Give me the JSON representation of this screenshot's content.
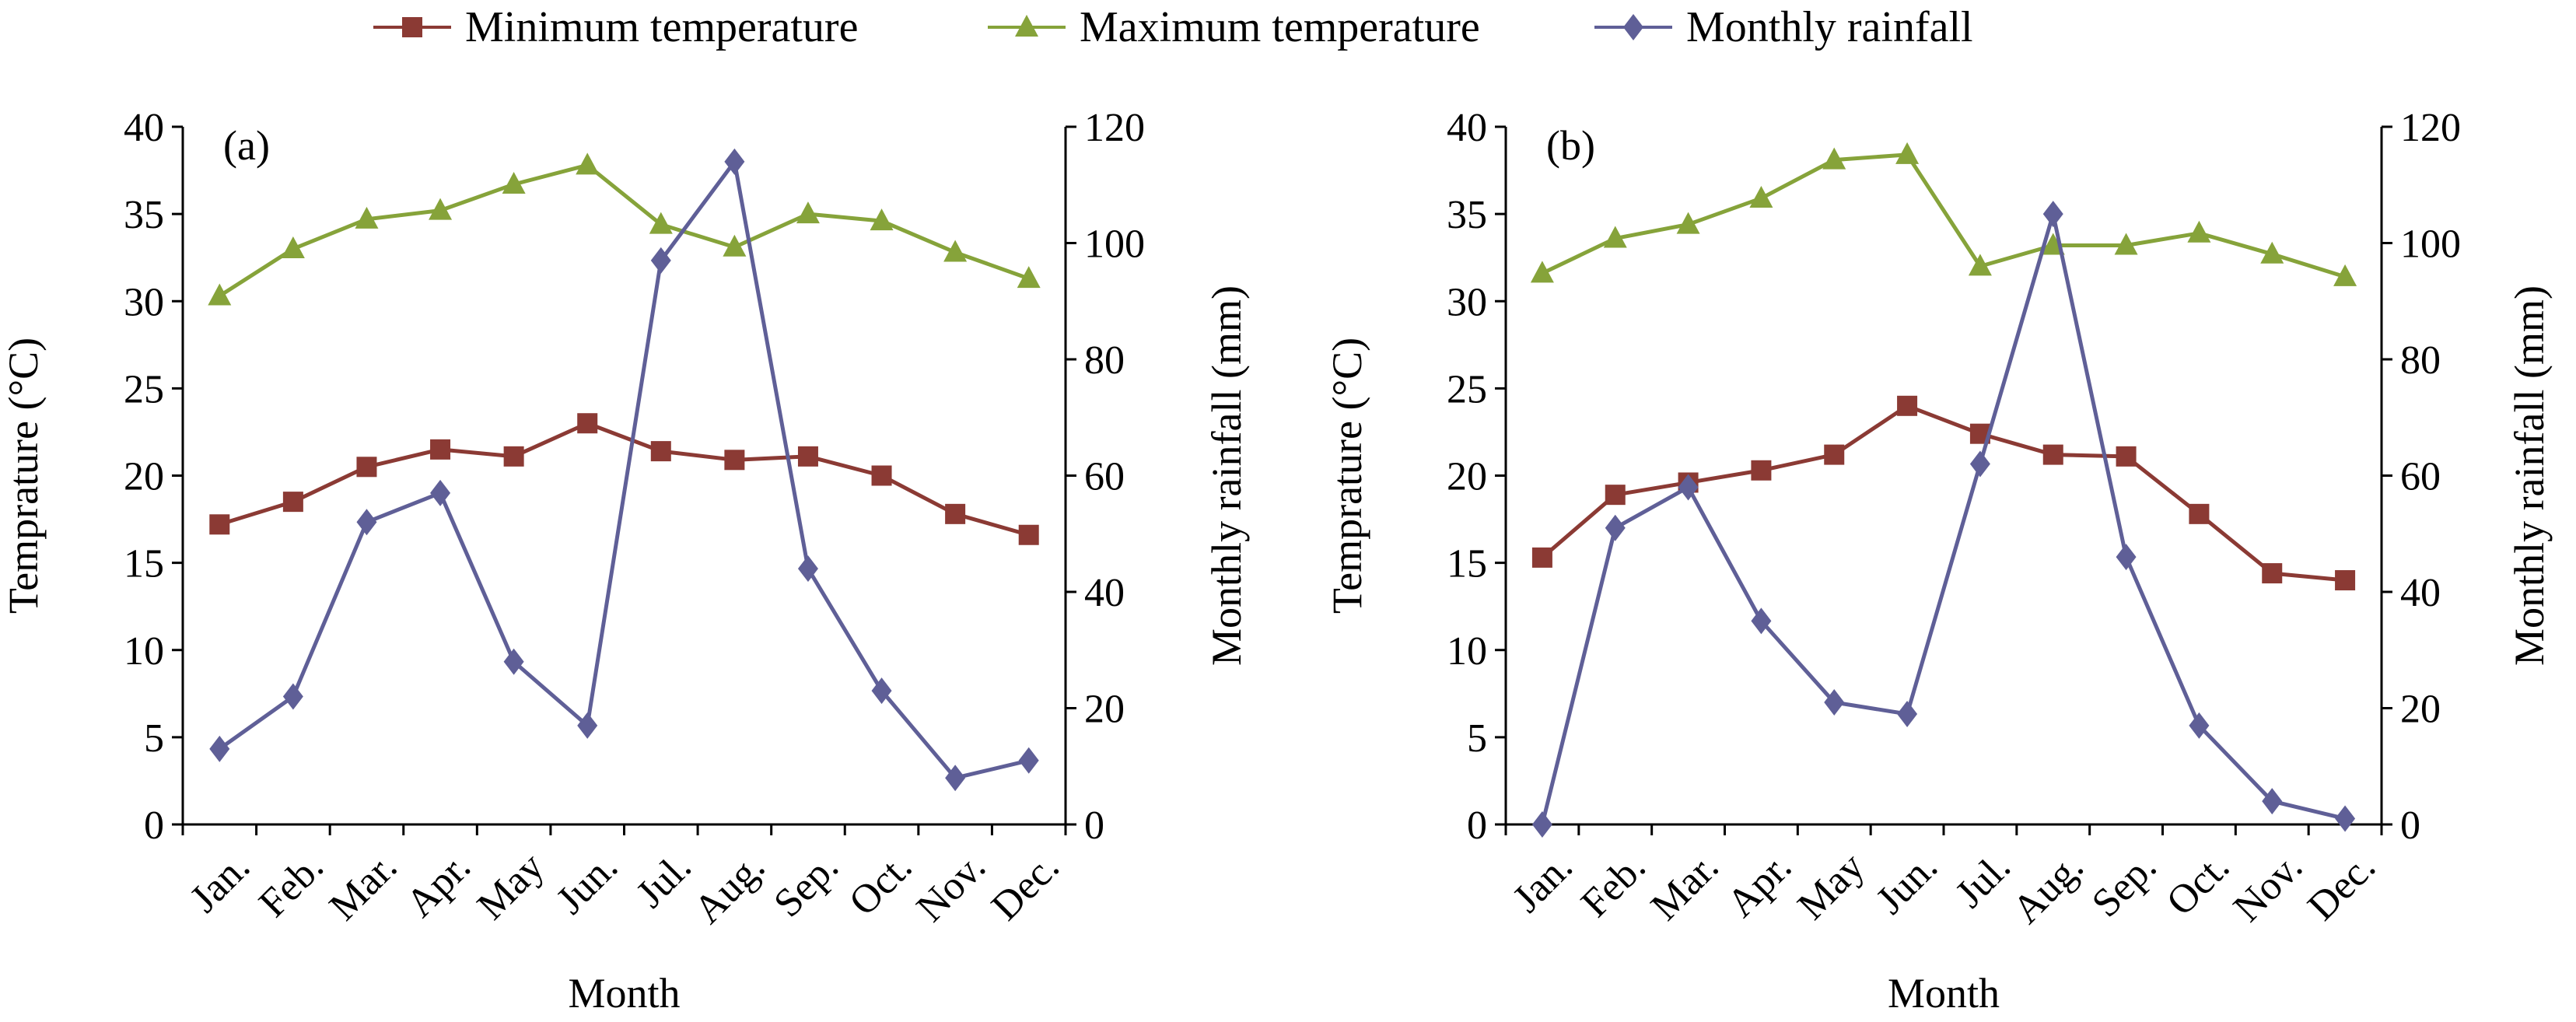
{
  "legend": [
    {
      "key": "min",
      "label": "Minimum temperature"
    },
    {
      "key": "max",
      "label": "Maximum temperature"
    },
    {
      "key": "rain",
      "label": "Monthly rainfall"
    }
  ],
  "colors": {
    "min": "#8b3a34",
    "max": "#86a33a",
    "rain": "#5f5f97",
    "axis": "#000000"
  },
  "chart_data": [
    {
      "type": "line",
      "panel_label": "(a)",
      "categories": [
        "Jan.",
        "Feb.",
        "Mar.",
        "Apr.",
        "May",
        "Jun.",
        "Jul.",
        "Aug.",
        "Sep.",
        "Oct.",
        "Nov.",
        "Dec."
      ],
      "xlabel": "Month",
      "ylabel_left": "Temprature (°C)",
      "ylabel_right": "Monthly rainfall (mm)",
      "ylim_left": [
        0,
        40
      ],
      "yticks_left": [
        0,
        5,
        10,
        15,
        20,
        25,
        30,
        35,
        40
      ],
      "ylim_right": [
        0,
        120
      ],
      "yticks_right": [
        0,
        20,
        40,
        60,
        80,
        100,
        120
      ],
      "grid": false,
      "series": [
        {
          "key": "min",
          "name": "Minimum temperature",
          "axis": "left",
          "marker": "square",
          "values": [
            17.2,
            18.5,
            20.5,
            21.5,
            21.1,
            23.0,
            21.4,
            20.9,
            21.1,
            20.0,
            17.8,
            16.6
          ]
        },
        {
          "key": "max",
          "name": "Maximum temperature",
          "axis": "left",
          "marker": "triangle",
          "values": [
            30.3,
            33.0,
            34.7,
            35.2,
            36.7,
            37.8,
            34.4,
            33.1,
            35.0,
            34.6,
            32.8,
            31.3
          ]
        },
        {
          "key": "rain",
          "name": "Monthly rainfall",
          "axis": "right",
          "marker": "diamond",
          "values": [
            13,
            22,
            52,
            57,
            28,
            17,
            97,
            114,
            44,
            23,
            8,
            11
          ]
        }
      ]
    },
    {
      "type": "line",
      "panel_label": "(b)",
      "categories": [
        "Jan.",
        "Feb.",
        "Mar.",
        "Apr.",
        "May",
        "Jun.",
        "Jul.",
        "Aug.",
        "Sep.",
        "Oct.",
        "Nov.",
        "Dec."
      ],
      "xlabel": "Month",
      "ylabel_left": "Temprature (°C)",
      "ylabel_right": "Monthly rainfall (mm)",
      "ylim_left": [
        0,
        40
      ],
      "yticks_left": [
        0,
        5,
        10,
        15,
        20,
        25,
        30,
        35,
        40
      ],
      "ylim_right": [
        0,
        120
      ],
      "yticks_right": [
        0,
        20,
        40,
        60,
        80,
        100,
        120
      ],
      "grid": false,
      "series": [
        {
          "key": "min",
          "name": "Minimum temperature",
          "axis": "left",
          "marker": "square",
          "values": [
            15.3,
            18.9,
            19.6,
            20.3,
            21.2,
            24.0,
            22.4,
            21.2,
            21.1,
            17.8,
            14.4,
            14.0
          ]
        },
        {
          "key": "max",
          "name": "Maximum temperature",
          "axis": "left",
          "marker": "triangle",
          "values": [
            31.6,
            33.6,
            34.4,
            35.9,
            38.1,
            38.4,
            32.0,
            33.2,
            33.2,
            33.9,
            32.7,
            31.4
          ]
        },
        {
          "key": "rain",
          "name": "Monthly rainfall",
          "axis": "right",
          "marker": "diamond",
          "values": [
            0,
            51,
            58,
            35,
            21,
            19,
            62,
            105,
            46,
            17,
            4,
            1
          ]
        }
      ]
    }
  ]
}
